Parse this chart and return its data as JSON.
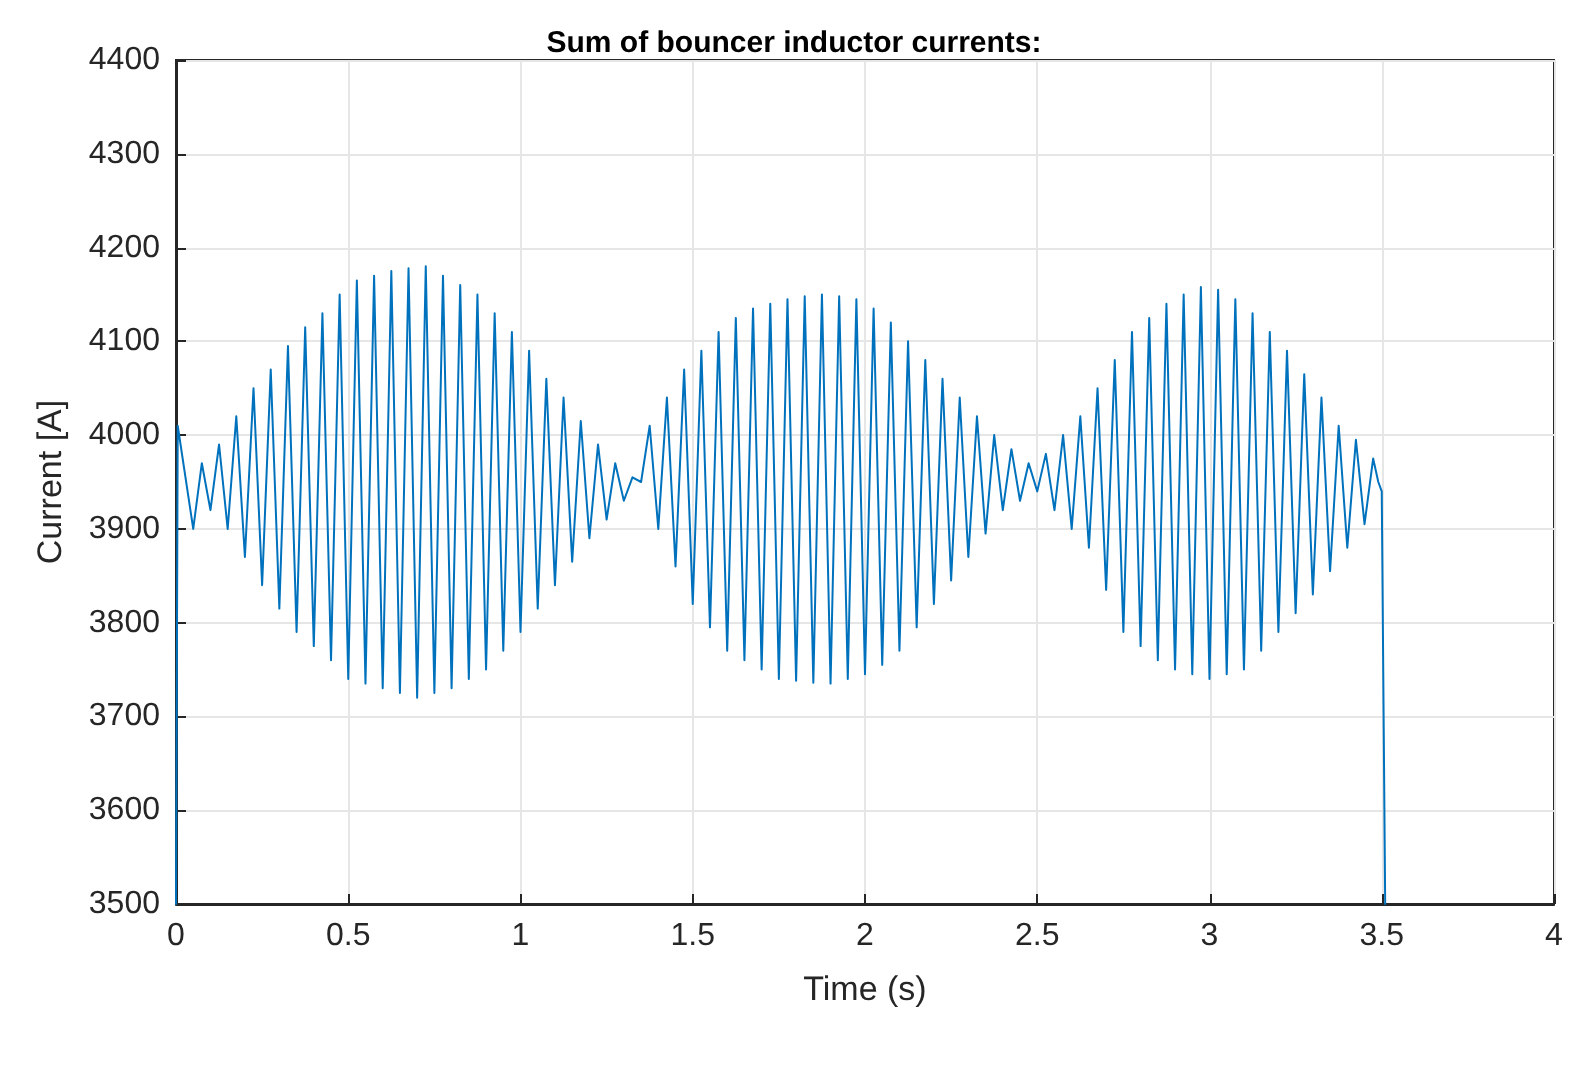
{
  "chart_data": {
    "type": "line",
    "title": "Sum of bouncer inductor currents:",
    "xlabel": "Time (s)",
    "ylabel": "Current [A]",
    "xlim": [
      0,
      4
    ],
    "xticks": [
      0,
      0.5,
      1,
      1.5,
      2,
      2.5,
      3,
      3.5,
      4
    ],
    "ylim": [
      3500,
      4400
    ],
    "yticks": [
      3500,
      3600,
      3700,
      3800,
      3900,
      4000,
      4100,
      4200,
      4300,
      4400
    ],
    "grid": true,
    "series": [
      {
        "color": "#0072bd",
        "x": [
          0,
          0.005,
          0.05,
          0.075,
          0.1,
          0.125,
          0.15,
          0.175,
          0.2,
          0.225,
          0.25,
          0.275,
          0.3,
          0.325,
          0.35,
          0.375,
          0.4,
          0.425,
          0.45,
          0.475,
          0.5,
          0.525,
          0.55,
          0.575,
          0.6,
          0.625,
          0.65,
          0.675,
          0.7,
          0.725,
          0.75,
          0.775,
          0.8,
          0.825,
          0.85,
          0.875,
          0.9,
          0.925,
          0.95,
          0.975,
          1.0,
          1.025,
          1.05,
          1.075,
          1.1,
          1.125,
          1.15,
          1.175,
          1.2,
          1.225,
          1.25,
          1.275,
          1.3,
          1.325,
          1.35,
          1.375,
          1.4,
          1.425,
          1.45,
          1.475,
          1.5,
          1.525,
          1.55,
          1.575,
          1.6,
          1.625,
          1.65,
          1.675,
          1.7,
          1.725,
          1.75,
          1.775,
          1.8,
          1.825,
          1.85,
          1.875,
          1.9,
          1.925,
          1.95,
          1.975,
          2.0,
          2.025,
          2.05,
          2.075,
          2.1,
          2.125,
          2.15,
          2.175,
          2.2,
          2.225,
          2.25,
          2.275,
          2.3,
          2.325,
          2.35,
          2.375,
          2.4,
          2.425,
          2.45,
          2.475,
          2.5,
          2.525,
          2.55,
          2.575,
          2.6,
          2.625,
          2.65,
          2.675,
          2.7,
          2.725,
          2.75,
          2.775,
          2.8,
          2.825,
          2.85,
          2.875,
          2.9,
          2.925,
          2.95,
          2.975,
          3.0,
          3.025,
          3.05,
          3.075,
          3.1,
          3.125,
          3.15,
          3.175,
          3.2,
          3.225,
          3.25,
          3.275,
          3.3,
          3.325,
          3.35,
          3.375,
          3.4,
          3.425,
          3.45,
          3.475,
          3.49,
          3.5,
          3.51
        ],
        "values": [
          3500,
          4010,
          3900,
          3970,
          3920,
          3990,
          3900,
          4020,
          3870,
          4050,
          3840,
          4070,
          3815,
          4095,
          3790,
          4115,
          3775,
          4130,
          3760,
          4150,
          3740,
          4165,
          3735,
          4170,
          3730,
          4175,
          3725,
          4178,
          3720,
          4180,
          3725,
          4170,
          3730,
          4160,
          3740,
          4150,
          3750,
          4130,
          3770,
          4110,
          3790,
          4090,
          3815,
          4060,
          3840,
          4040,
          3865,
          4015,
          3890,
          3990,
          3910,
          3970,
          3930,
          3955,
          3950,
          4010,
          3900,
          4040,
          3860,
          4070,
          3820,
          4090,
          3795,
          4110,
          3770,
          4125,
          3760,
          4135,
          3750,
          4140,
          3740,
          4145,
          3738,
          4148,
          3736,
          4150,
          3735,
          4148,
          3740,
          4145,
          3745,
          4135,
          3755,
          4120,
          3770,
          4100,
          3795,
          4080,
          3820,
          4060,
          3845,
          4040,
          3870,
          4020,
          3895,
          4000,
          3920,
          3985,
          3930,
          3970,
          3940,
          3980,
          3920,
          4000,
          3900,
          4020,
          3880,
          4050,
          3835,
          4080,
          3790,
          4110,
          3775,
          4125,
          3760,
          4140,
          3750,
          4150,
          3745,
          4158,
          3740,
          4155,
          3745,
          4145,
          3750,
          4130,
          3770,
          4110,
          3790,
          4090,
          3810,
          4065,
          3830,
          4040,
          3855,
          4010,
          3880,
          3995,
          3905,
          3975,
          3950,
          3940,
          3500
        ]
      }
    ]
  }
}
